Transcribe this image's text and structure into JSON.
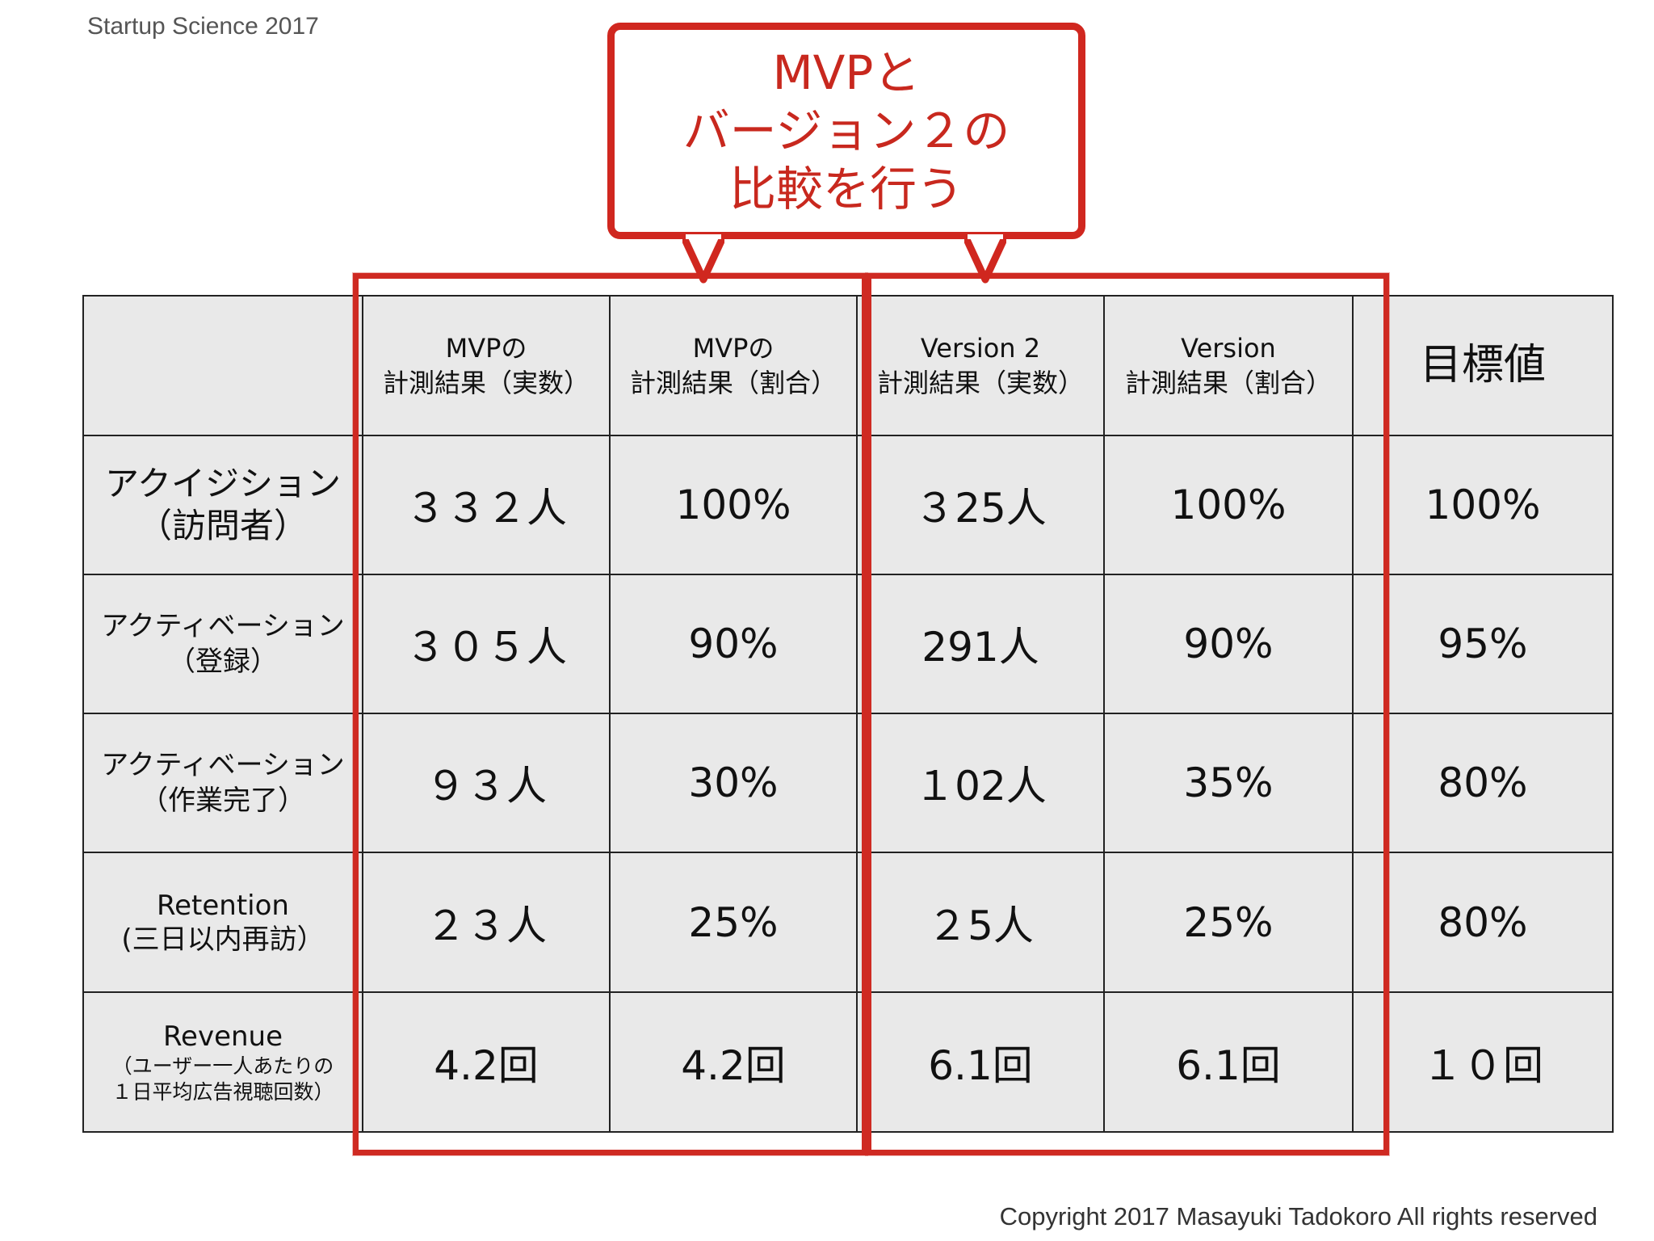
{
  "header_note": "Startup Science 2017",
  "footer_note": "Copyright 2017 Masayuki Tadokoro All rights reserved",
  "callout": {
    "line1": "MVPと",
    "line2": "バージョン２の",
    "line3": "比較を行う"
  },
  "table": {
    "headers": {
      "mvp_count": {
        "line1": "MVPの",
        "line2": "計測結果（実数）"
      },
      "mvp_ratio": {
        "line1": "MVPの",
        "line2": "計測結果（割合）"
      },
      "v2_count": {
        "line1": "Version 2",
        "line2": "計測結果（実数）"
      },
      "v2_ratio": {
        "line1": "Version",
        "line2": "計測結果（割合）"
      },
      "target": "目標値"
    },
    "rows": [
      {
        "label1": "アクイジション",
        "label2": "（訪問者）",
        "mvp_count": "３３２人",
        "mvp_ratio": "100%",
        "v2_count": "３25人",
        "v2_ratio": "100%",
        "target": "100%"
      },
      {
        "label1": "アクティベーション",
        "label2": "（登録）",
        "mvp_count": "３０５人",
        "mvp_ratio": "90%",
        "v2_count": "291人",
        "v2_ratio": "90%",
        "target": "95%"
      },
      {
        "label1": "アクティベーション",
        "label2": "（作業完了）",
        "mvp_count": "９３人",
        "mvp_ratio": "30%",
        "v2_count": "１02人",
        "v2_ratio": "35%",
        "target": "80%"
      },
      {
        "label1": "Retention",
        "label2": "(三日以内再訪）",
        "mvp_count": "２３人",
        "mvp_ratio": "25%",
        "v2_count": "２5人",
        "v2_ratio": "25%",
        "target": "80%"
      },
      {
        "label1": "Revenue",
        "label2": "（ユーザー一人あたりの",
        "label3": "１日平均広告視聴回数）",
        "mvp_count": "4.2回",
        "mvp_ratio": "4.2回",
        "v2_count": "6.1回",
        "v2_ratio": "6.1回",
        "target": "１０回"
      }
    ]
  },
  "colors": {
    "accent": "#cf2a22",
    "cell_bg": "#e9e9e9"
  }
}
